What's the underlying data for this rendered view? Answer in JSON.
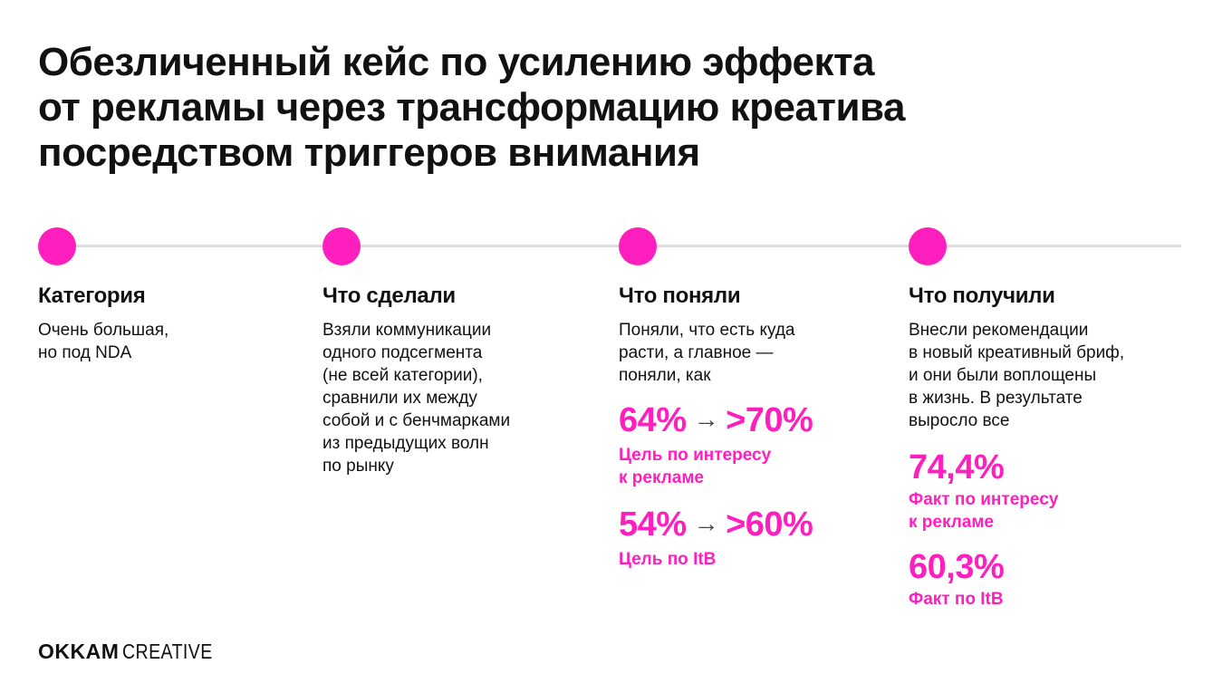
{
  "title": {
    "line1": "Обезличенный кейс по усилению эффекта",
    "line2": "от рекламы через трансформацию креатива",
    "line3": "посредством триггеров внимания"
  },
  "colors": {
    "accent": "#ff1fbf",
    "line": "#dcdcdc",
    "text": "#111111"
  },
  "columns": [
    {
      "heading": "Категория",
      "text": [
        "Очень большая,",
        "но под NDA"
      ]
    },
    {
      "heading": "Что сделали",
      "text": [
        "Взяли коммуникации",
        "одного подсегмента",
        "(не всей категории),",
        "сравнили их между",
        "собой и с бенчмарками",
        "из предыдущих волн",
        "по рынку"
      ]
    },
    {
      "heading": "Что поняли",
      "text": [
        "Поняли, что есть куда",
        "расти, а главное —",
        "поняли, как"
      ],
      "metrics": [
        {
          "from": "64%",
          "arrow": "→",
          "to": ">70%",
          "label": [
            "Цель по интересу",
            "к рекламе"
          ]
        },
        {
          "from": "54%",
          "arrow": "→",
          "to": ">60%",
          "label": [
            "Цель по ItB"
          ]
        }
      ]
    },
    {
      "heading": "Что получили",
      "text": [
        "Внесли рекомендации",
        "в новый креативный бриф,",
        "и они были воплощены",
        "в жизнь. В результате",
        "выросло все"
      ],
      "metrics": [
        {
          "value": "74,4%",
          "label": [
            "Факт по интересу",
            "к рекламе"
          ]
        },
        {
          "value": "60,3%",
          "label": [
            "Факт по ItB"
          ]
        }
      ]
    }
  ],
  "logo": {
    "brand": "OKKAM",
    "sub": "CREATIVE"
  }
}
